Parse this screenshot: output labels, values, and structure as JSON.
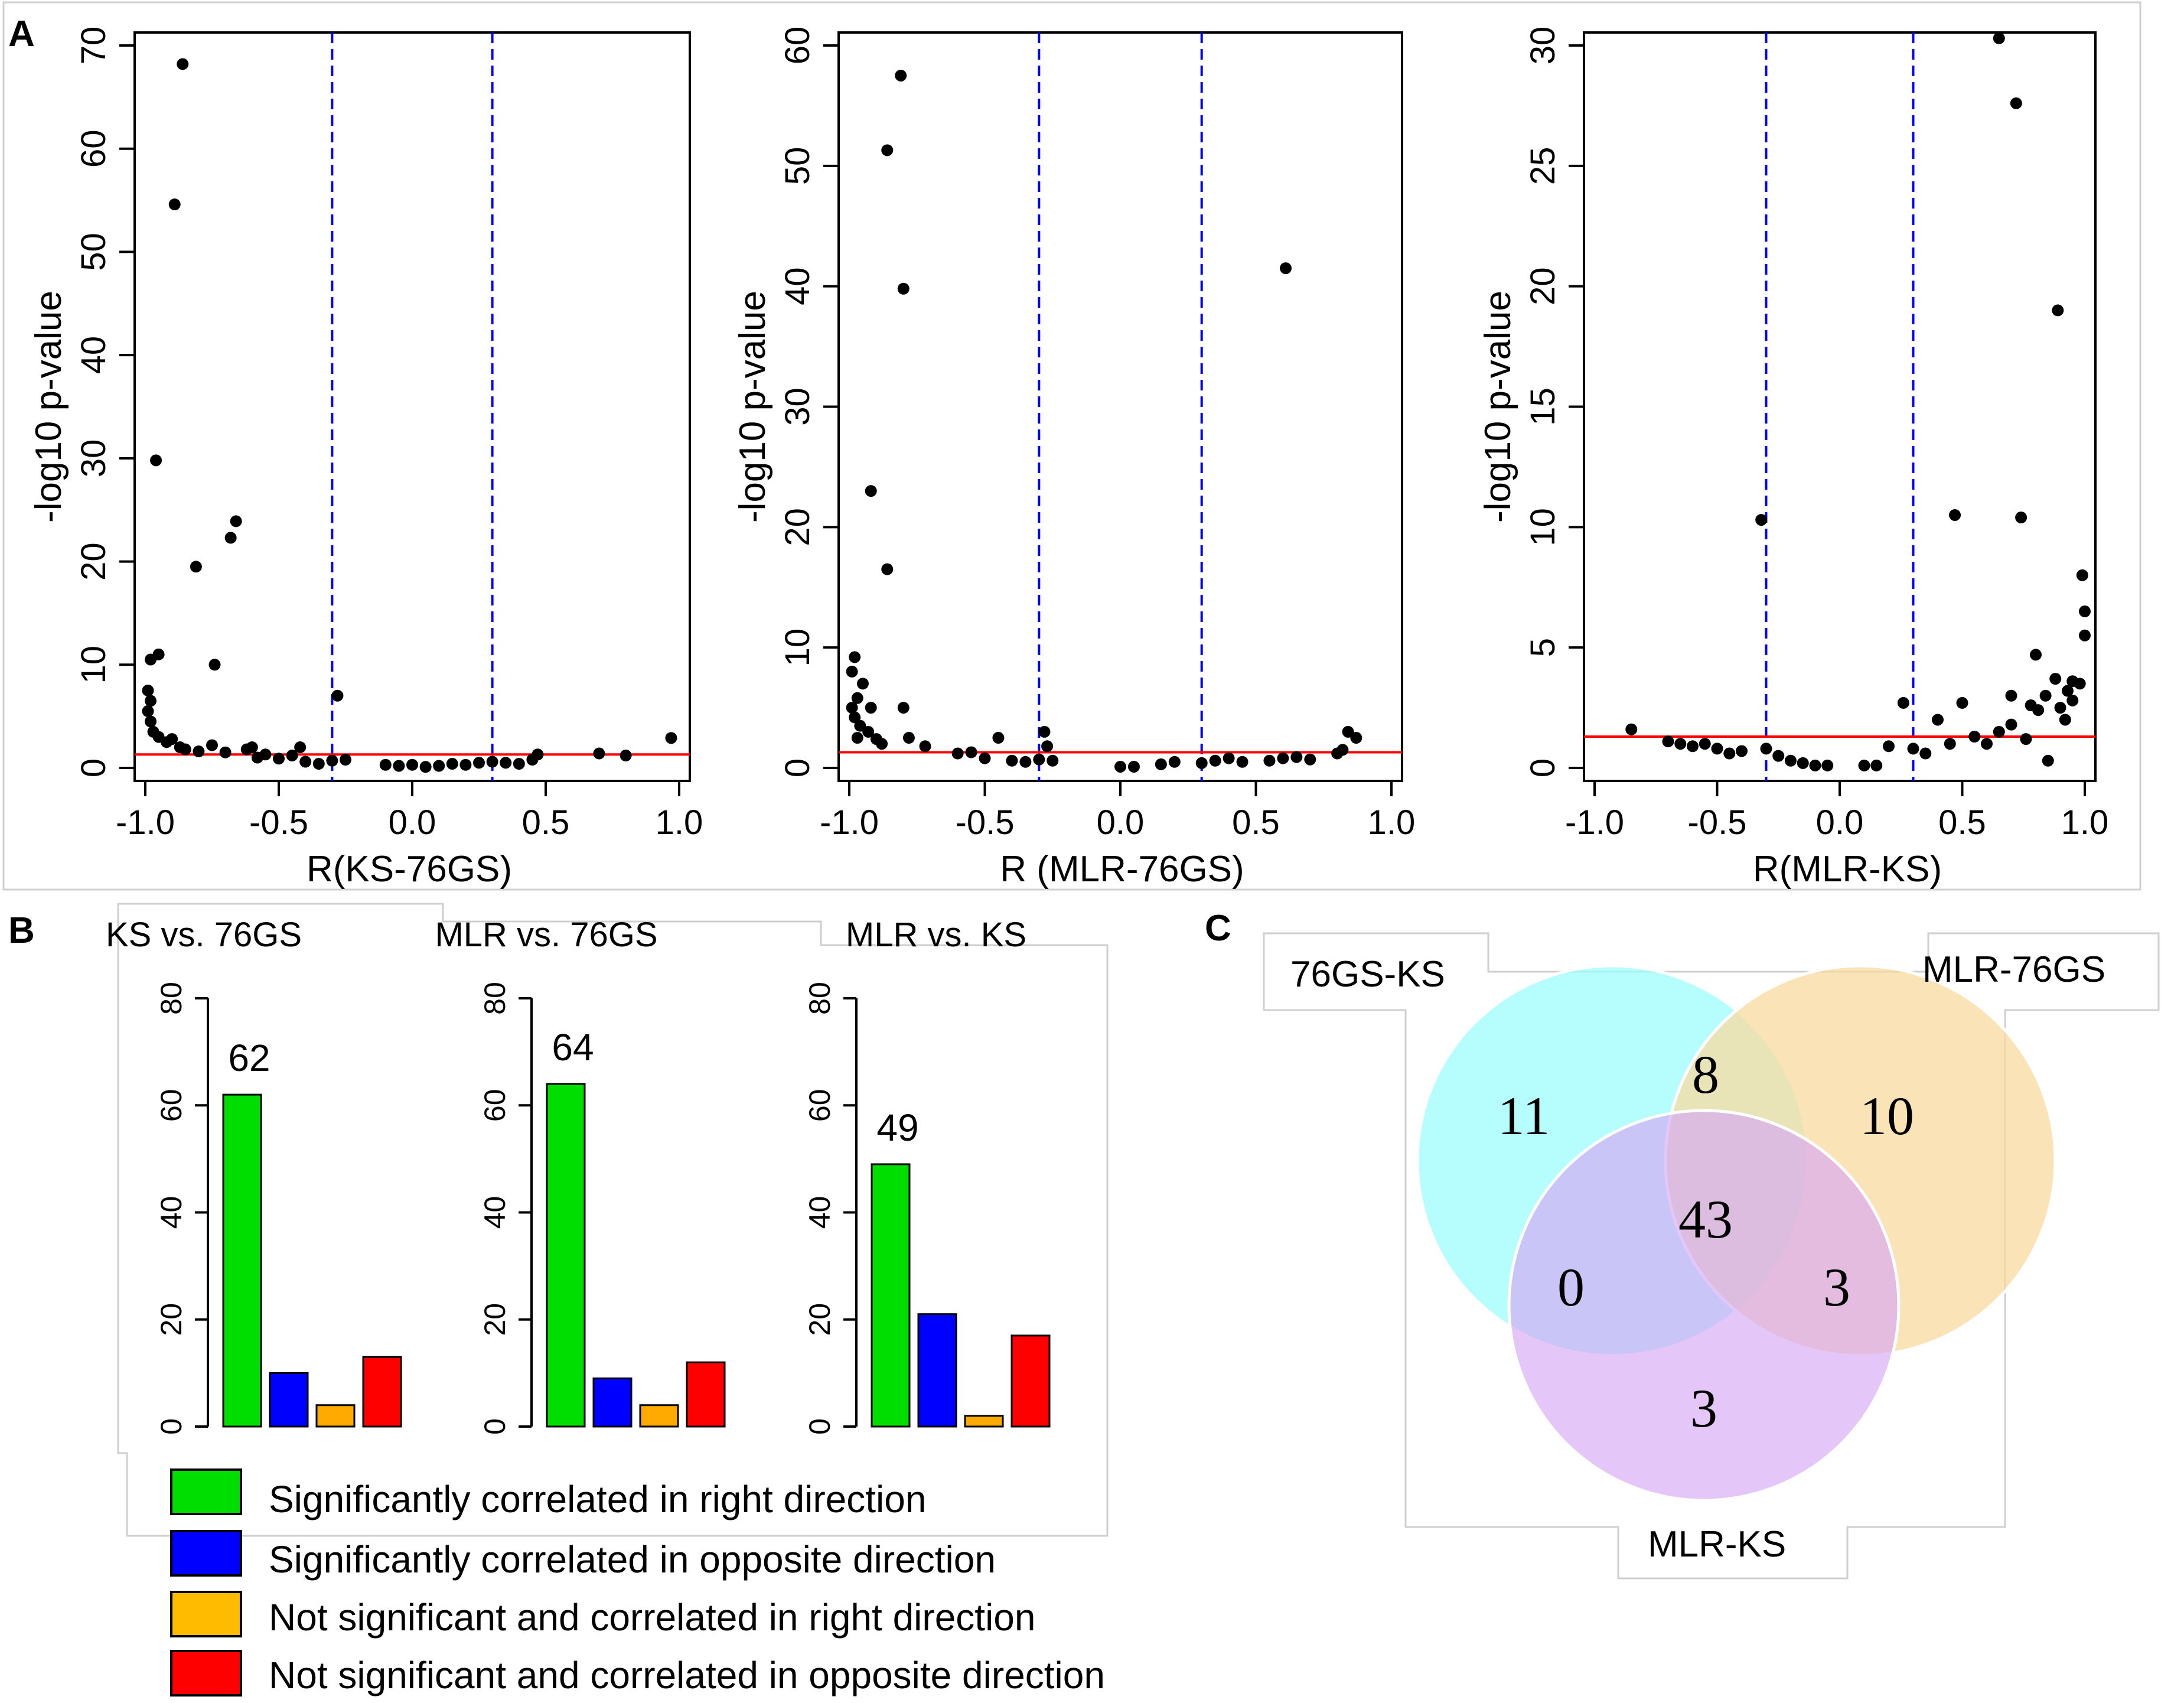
{
  "panels": {
    "a": "A",
    "b": "B",
    "c": "C"
  },
  "colors": {
    "sig_right": "#00DD00",
    "sig_opposite": "#0000FF",
    "nonsig_right": "#FFAA00",
    "nonsig_opposite": "#FF0000",
    "threshold_line": "#FF0000",
    "cutoff_line": "#0000FF",
    "venn_76gs_ks": "#9EFCFC",
    "venn_mlr_76gs": "#FAD9A0",
    "venn_mlr_ks": "#D6A8F5"
  },
  "chart_data": [
    {
      "id": "scatter-ks-76gs",
      "type": "scatter",
      "xlabel": "R(KS-76GS)",
      "ylabel": "-log10 p-value",
      "xlim": [
        -1.0,
        1.0
      ],
      "ylim": [
        0,
        70
      ],
      "xticks": [
        "-1.0",
        "-0.5",
        "0.0",
        "0.5",
        "1.0"
      ],
      "yticks": [
        "0",
        "10",
        "20",
        "30",
        "40",
        "50",
        "60",
        "70"
      ],
      "cutoffs": [
        -0.3,
        0.3
      ],
      "threshold": 1.3,
      "points": [
        [
          -0.86,
          68.2
        ],
        [
          -0.89,
          54.6
        ],
        [
          -0.96,
          29.8
        ],
        [
          -0.66,
          23.9
        ],
        [
          -0.68,
          22.3
        ],
        [
          -0.81,
          19.5
        ],
        [
          -0.95,
          11.0
        ],
        [
          -0.98,
          10.5
        ],
        [
          -0.74,
          10.0
        ],
        [
          -0.99,
          7.5
        ],
        [
          -0.98,
          6.5
        ],
        [
          -0.99,
          5.5
        ],
        [
          -0.98,
          4.5
        ],
        [
          -0.97,
          3.5
        ],
        [
          -0.95,
          3.0
        ],
        [
          -0.92,
          2.5
        ],
        [
          -0.9,
          2.8
        ],
        [
          -0.87,
          2.0
        ],
        [
          -0.85,
          1.8
        ],
        [
          -0.8,
          1.6
        ],
        [
          -0.75,
          2.2
        ],
        [
          -0.7,
          1.5
        ],
        [
          -0.62,
          1.8
        ],
        [
          -0.55,
          1.3
        ],
        [
          -0.5,
          0.9
        ],
        [
          -0.45,
          1.2
        ],
        [
          -0.4,
          0.6
        ],
        [
          -0.35,
          0.4
        ],
        [
          -0.3,
          0.7
        ],
        [
          -0.25,
          0.8
        ],
        [
          -0.42,
          2.0
        ],
        [
          -0.28,
          7.0
        ],
        [
          -0.1,
          0.3
        ],
        [
          -0.05,
          0.2
        ],
        [
          0.05,
          0.1
        ],
        [
          0.1,
          0.2
        ],
        [
          0.15,
          0.4
        ],
        [
          0.2,
          0.3
        ],
        [
          0.25,
          0.5
        ],
        [
          0.3,
          0.6
        ],
        [
          0.35,
          0.5
        ],
        [
          0.4,
          0.4
        ],
        [
          0.45,
          0.8
        ],
        [
          0.47,
          1.3
        ],
        [
          0.7,
          1.4
        ],
        [
          0.8,
          1.2
        ],
        [
          0.97,
          2.9
        ],
        [
          0.0,
          0.3
        ],
        [
          -0.6,
          2.0
        ],
        [
          -0.58,
          1.0
        ]
      ]
    },
    {
      "id": "scatter-mlr-76gs",
      "type": "scatter",
      "xlabel": "R (MLR-76GS)",
      "ylabel": "-log10 p-value",
      "xlim": [
        -1.0,
        1.0
      ],
      "ylim": [
        0,
        60
      ],
      "xticks": [
        "-1.0",
        "-0.5",
        "0.0",
        "0.5",
        "1.0"
      ],
      "yticks": [
        "0",
        "10",
        "20",
        "30",
        "40",
        "50",
        "60"
      ],
      "cutoffs": [
        -0.3,
        0.3
      ],
      "threshold": 1.3,
      "points": [
        [
          -0.81,
          57.5
        ],
        [
          -0.86,
          51.3
        ],
        [
          -0.8,
          39.8
        ],
        [
          0.61,
          41.5
        ],
        [
          -0.92,
          23.0
        ],
        [
          -0.86,
          16.5
        ],
        [
          -0.98,
          9.2
        ],
        [
          -0.99,
          8.0
        ],
        [
          -0.95,
          7.0
        ],
        [
          -0.97,
          5.8
        ],
        [
          -0.99,
          5.0
        ],
        [
          -0.92,
          5.0
        ],
        [
          -0.98,
          4.2
        ],
        [
          -0.96,
          3.5
        ],
        [
          -0.93,
          3.0
        ],
        [
          -0.9,
          2.4
        ],
        [
          -0.88,
          2.0
        ],
        [
          -0.8,
          5.0
        ],
        [
          -0.78,
          2.5
        ],
        [
          -0.72,
          1.8
        ],
        [
          -0.6,
          1.2
        ],
        [
          -0.5,
          0.8
        ],
        [
          -0.45,
          2.5
        ],
        [
          -0.4,
          0.6
        ],
        [
          -0.35,
          0.5
        ],
        [
          -0.3,
          0.7
        ],
        [
          -0.28,
          3.0
        ],
        [
          -0.27,
          1.8
        ],
        [
          -0.25,
          0.6
        ],
        [
          0.0,
          0.1
        ],
        [
          0.05,
          0.1
        ],
        [
          0.15,
          0.3
        ],
        [
          0.2,
          0.5
        ],
        [
          0.3,
          0.4
        ],
        [
          0.35,
          0.6
        ],
        [
          0.4,
          0.8
        ],
        [
          0.45,
          0.5
        ],
        [
          0.55,
          0.6
        ],
        [
          0.6,
          0.8
        ],
        [
          0.65,
          0.9
        ],
        [
          0.7,
          0.7
        ],
        [
          0.8,
          1.2
        ],
        [
          0.84,
          3.0
        ],
        [
          0.87,
          2.5
        ],
        [
          0.82,
          1.5
        ],
        [
          -0.55,
          1.3
        ],
        [
          -0.97,
          2.5
        ]
      ]
    },
    {
      "id": "scatter-mlr-ks",
      "type": "scatter",
      "xlabel": "R(MLR-KS)",
      "ylabel": "-log10 p-value",
      "xlim": [
        -1.0,
        1.0
      ],
      "ylim": [
        0,
        30
      ],
      "xticks": [
        "-1.0",
        "-0.5",
        "0.0",
        "0.5",
        "1.0"
      ],
      "yticks": [
        "0",
        "5",
        "10",
        "15",
        "20",
        "25",
        "30"
      ],
      "cutoffs": [
        -0.3,
        0.3
      ],
      "threshold": 1.3,
      "points": [
        [
          0.65,
          30.3
        ],
        [
          0.72,
          27.6
        ],
        [
          0.89,
          19.0
        ],
        [
          -0.32,
          10.3
        ],
        [
          0.47,
          10.5
        ],
        [
          0.74,
          10.4
        ],
        [
          0.99,
          8.0
        ],
        [
          1.0,
          6.5
        ],
        [
          1.0,
          5.5
        ],
        [
          0.8,
          4.7
        ],
        [
          0.95,
          3.6
        ],
        [
          0.98,
          3.5
        ],
        [
          0.88,
          3.7
        ],
        [
          0.84,
          3.0
        ],
        [
          0.81,
          2.4
        ],
        [
          0.78,
          2.6
        ],
        [
          0.7,
          3.0
        ],
        [
          0.5,
          2.7
        ],
        [
          0.4,
          2.0
        ],
        [
          0.3,
          0.8
        ],
        [
          0.35,
          0.6
        ],
        [
          0.45,
          1.0
        ],
        [
          0.55,
          1.3
        ],
        [
          0.6,
          1.0
        ],
        [
          0.65,
          1.5
        ],
        [
          0.7,
          1.8
        ],
        [
          0.76,
          1.2
        ],
        [
          0.85,
          0.3
        ],
        [
          0.92,
          2.0
        ],
        [
          0.95,
          2.8
        ],
        [
          0.26,
          2.7
        ],
        [
          0.2,
          0.9
        ],
        [
          0.15,
          0.1
        ],
        [
          0.1,
          0.1
        ],
        [
          -0.05,
          0.1
        ],
        [
          -0.1,
          0.1
        ],
        [
          -0.15,
          0.2
        ],
        [
          -0.2,
          0.3
        ],
        [
          -0.25,
          0.5
        ],
        [
          -0.3,
          0.8
        ],
        [
          -0.4,
          0.7
        ],
        [
          -0.5,
          0.8
        ],
        [
          -0.55,
          1.0
        ],
        [
          -0.6,
          0.9
        ],
        [
          -0.65,
          1.0
        ],
        [
          -0.7,
          1.1
        ],
        [
          -0.85,
          1.6
        ],
        [
          0.9,
          2.5
        ],
        [
          0.93,
          3.2
        ],
        [
          -0.45,
          0.6
        ]
      ]
    },
    {
      "id": "bar-ks-76gs",
      "type": "bar",
      "title": "KS vs. 76GS",
      "ylim": [
        0,
        80
      ],
      "yticks": [
        "0",
        "20",
        "40",
        "60",
        "80"
      ],
      "values": [
        62,
        10,
        4,
        13
      ],
      "label": "62"
    },
    {
      "id": "bar-mlr-76gs",
      "type": "bar",
      "title": "MLR vs. 76GS",
      "ylim": [
        0,
        80
      ],
      "yticks": [
        "0",
        "20",
        "40",
        "60",
        "80"
      ],
      "values": [
        64,
        9,
        4,
        12
      ],
      "label": "64"
    },
    {
      "id": "bar-mlr-ks",
      "type": "bar",
      "title": "MLR vs. KS",
      "ylim": [
        0,
        80
      ],
      "yticks": [
        "0",
        "20",
        "40",
        "60",
        "80"
      ],
      "values": [
        49,
        21,
        2,
        17
      ],
      "label": "49"
    }
  ],
  "legend": [
    "Significantly correlated in right direction",
    "Significantly correlated in opposite direction",
    "Not significant and correlated in right direction",
    "Not significant and correlated in opposite direction"
  ],
  "venn": {
    "sets": [
      "76GS-KS",
      "MLR-76GS",
      "MLR-KS"
    ],
    "counts": {
      "only_76gs_ks": "11",
      "only_mlr_76gs": "10",
      "only_mlr_ks": "3",
      "76gs_ks_and_mlr_76gs": "8",
      "76gs_ks_and_mlr_ks": "0",
      "mlr_76gs_and_mlr_ks": "3",
      "all_three": "43"
    }
  }
}
